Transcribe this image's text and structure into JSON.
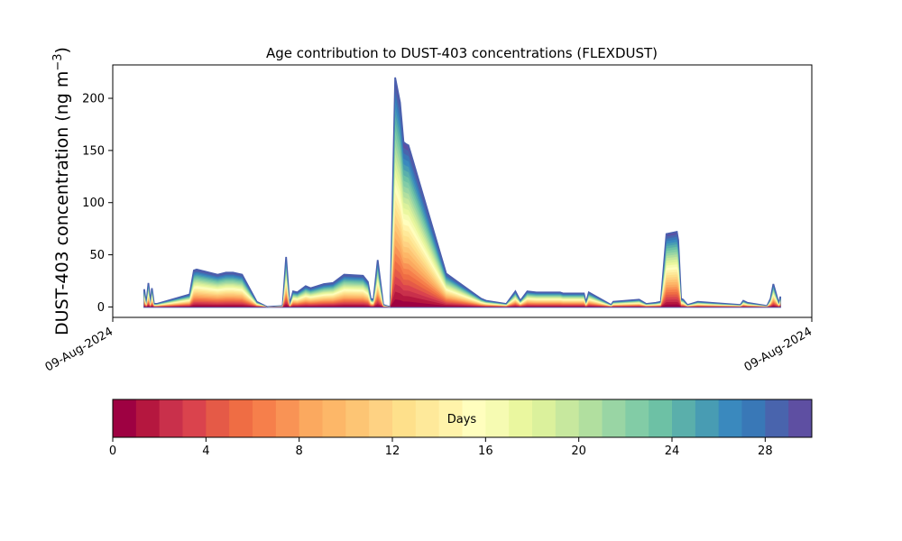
{
  "chart_data": {
    "type": "area",
    "title": "Age contribution to DUST-403 concentrations (FLEXDUST)",
    "ylabel": "DUST-403 concentration (ng m",
    "ylabel_sup": "−3",
    "ylabel_close": ")",
    "xlabel": "",
    "ylim": [
      -10,
      232
    ],
    "yticks": [
      0,
      50,
      100,
      150,
      200
    ],
    "xticks": [
      "09-Aug-2024",
      "09-Aug-2024"
    ],
    "x_range": [
      0,
      100
    ],
    "grid": false,
    "legend": "none",
    "note": "",
    "x": [
      4.5,
      4.8,
      5.1,
      5.4,
      5.6,
      5.9,
      6.3,
      11,
      11.6,
      12,
      13.2,
      15,
      16.2,
      17.2,
      18.5,
      20.6,
      22.1,
      24.3,
      24.8,
      25.3,
      25.8,
      26.4,
      27.6,
      28.3,
      30.2,
      31.5,
      33.1,
      35.8,
      36.5,
      36.9,
      37.3,
      37.9,
      38.7,
      39.7,
      40.4,
      41.1,
      41.6,
      42,
      42.3,
      47.7,
      52.7,
      53.4,
      56.3,
      57.6,
      58.3,
      59.3,
      60.6,
      62,
      64,
      64.4,
      64.6,
      67.4,
      67.7,
      68.1,
      71.3,
      71.6,
      75.3,
      76.3,
      77.7,
      78.4,
      79.2,
      80.7,
      80.9,
      81.3,
      81.6,
      82.2,
      83.7,
      85.6,
      89.8,
      90.2,
      90.8,
      93.6,
      94.1,
      94.5,
      95.3,
      95.5
    ],
    "series_totals": [
      17,
      3,
      23,
      3,
      18,
      3,
      3,
      12,
      35,
      36,
      34,
      31,
      33,
      33,
      31,
      5,
      0,
      1,
      48,
      2,
      15,
      14,
      20,
      18,
      22,
      23,
      31,
      30,
      24,
      8,
      7,
      45,
      2,
      0,
      220,
      196,
      158,
      156,
      155,
      32,
      8,
      6,
      3,
      15,
      6,
      15,
      14,
      14,
      14,
      13,
      13,
      13,
      4,
      14,
      2,
      5,
      7,
      3,
      4,
      5,
      70,
      72,
      64,
      8,
      7,
      2,
      5,
      4,
      2,
      6,
      4,
      1,
      8,
      22,
      3,
      10
    ],
    "colorbar": {
      "label": "Days",
      "range": [
        0,
        30
      ],
      "ticks": [
        0,
        4,
        8,
        12,
        16,
        20,
        24,
        28
      ],
      "colors": [
        "#9e0142",
        "#b5173f",
        "#c9304b",
        "#da434d",
        "#e55a47",
        "#ef6d44",
        "#f67f4b",
        "#f99355",
        "#fba95f",
        "#fdb768",
        "#fdc574",
        "#fed283",
        "#fee08b",
        "#fee99a",
        "#fff3aa",
        "#fffebe",
        "#f6fbb2",
        "#eaf79f",
        "#dbf19c",
        "#c7e89e",
        "#b1df9f",
        "#99d5a4",
        "#82cca6",
        "#6dc1a5",
        "#5aafab",
        "#489cb3",
        "#3a89be",
        "#3978b7",
        "#4964ad",
        "#5e4fa2"
      ]
    }
  }
}
